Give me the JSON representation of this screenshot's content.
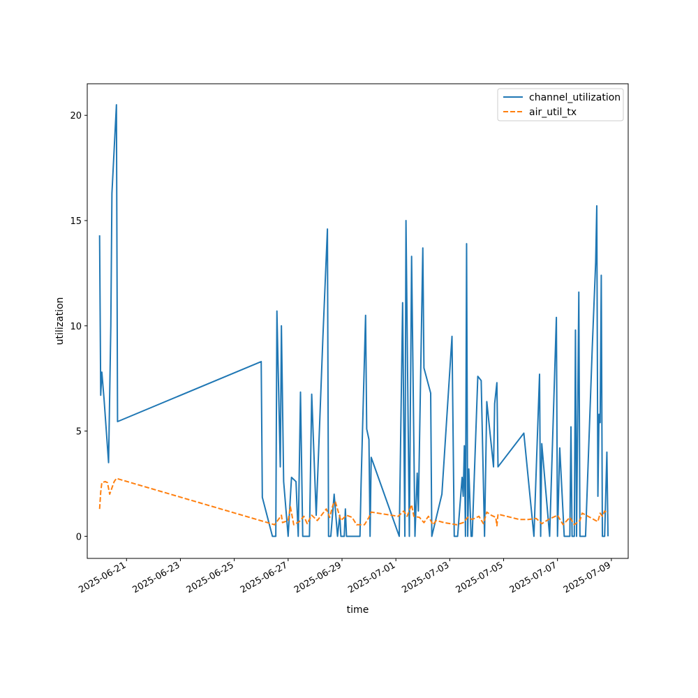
{
  "chart_data": {
    "type": "line",
    "title": "",
    "xlabel": "time",
    "ylabel": "utilization",
    "x_ticks": [
      "2025-06-21",
      "2025-06-23",
      "2025-06-25",
      "2025-06-27",
      "2025-06-29",
      "2025-07-01",
      "2025-07-03",
      "2025-07-05",
      "2025-07-07",
      "2025-07-09"
    ],
    "y_ticks": [
      0,
      5,
      10,
      15,
      20
    ],
    "ylim": [
      -1.05,
      21.5
    ],
    "xlim": [
      "2025-06-19T13:00",
      "2025-07-09T15:00"
    ],
    "grid": false,
    "legend": "top-right",
    "series": [
      {
        "name": "channel_utilization",
        "color": "#1f77b4",
        "style": "solid",
        "points": [
          [
            "2025-06-20T00:00",
            14.3
          ],
          [
            "2025-06-20T01:00",
            6.7
          ],
          [
            "2025-06-20T02:00",
            7.8
          ],
          [
            "2025-06-20T04:00",
            6.5
          ],
          [
            "2025-06-20T06:00",
            5.0
          ],
          [
            "2025-06-20T08:00",
            3.5
          ],
          [
            "2025-06-20T10:00",
            10.0
          ],
          [
            "2025-06-20T11:00",
            16.3
          ],
          [
            "2025-06-20T15:00",
            20.5
          ],
          [
            "2025-06-20T16:00",
            5.45
          ],
          [
            "2025-06-26T00:00",
            8.3
          ],
          [
            "2025-06-26T01:00",
            1.85
          ],
          [
            "2025-06-26T10:00",
            0.0
          ],
          [
            "2025-06-26T13:00",
            0.0
          ],
          [
            "2025-06-26T14:00",
            10.7
          ],
          [
            "2025-06-26T17:00",
            3.3
          ],
          [
            "2025-06-26T18:00",
            10.0
          ],
          [
            "2025-06-26T20:00",
            2.6
          ],
          [
            "2025-06-27T00:00",
            0.0
          ],
          [
            "2025-06-27T03:00",
            2.8
          ],
          [
            "2025-06-27T07:00",
            2.6
          ],
          [
            "2025-06-27T09:00",
            0.0
          ],
          [
            "2025-06-27T11:00",
            6.85
          ],
          [
            "2025-06-27T13:00",
            0.0
          ],
          [
            "2025-06-27T17:00",
            0.0
          ],
          [
            "2025-06-27T19:00",
            0.0
          ],
          [
            "2025-06-27T21:00",
            6.75
          ],
          [
            "2025-06-28T01:00",
            1.0
          ],
          [
            "2025-06-28T07:00",
            9.5
          ],
          [
            "2025-06-28T11:00",
            14.6
          ],
          [
            "2025-06-28T12:00",
            0.0
          ],
          [
            "2025-06-28T14:00",
            0.0
          ],
          [
            "2025-06-28T17:00",
            2.0
          ],
          [
            "2025-06-28T20:00",
            0.0
          ],
          [
            "2025-06-28T22:00",
            1.0
          ],
          [
            "2025-06-28T23:00",
            0.0
          ],
          [
            "2025-06-29T02:00",
            0.0
          ],
          [
            "2025-06-29T03:00",
            1.3
          ],
          [
            "2025-06-29T04:00",
            0.0
          ],
          [
            "2025-06-29T16:00",
            0.0
          ],
          [
            "2025-06-29T17:00",
            2.5
          ],
          [
            "2025-06-29T21:00",
            10.5
          ],
          [
            "2025-06-29T22:00",
            5.1
          ],
          [
            "2025-06-30T00:00",
            4.6
          ],
          [
            "2025-06-30T01:00",
            0.0
          ],
          [
            "2025-06-30T02:00",
            3.75
          ],
          [
            "2025-07-01T03:00",
            0.0
          ],
          [
            "2025-07-01T06:00",
            11.1
          ],
          [
            "2025-07-01T08:00",
            0.0
          ],
          [
            "2025-07-01T09:00",
            15.0
          ],
          [
            "2025-07-01T12:00",
            0.0
          ],
          [
            "2025-07-01T14:00",
            13.3
          ],
          [
            "2025-07-01T17:00",
            0.0
          ],
          [
            "2025-07-01T19:00",
            3.0
          ],
          [
            "2025-07-01T20:00",
            1.2
          ],
          [
            "2025-07-02T00:00",
            13.7
          ],
          [
            "2025-07-02T01:00",
            8.0
          ],
          [
            "2025-07-02T07:00",
            6.8
          ],
          [
            "2025-07-02T08:00",
            0.0
          ],
          [
            "2025-07-02T17:00",
            2.0
          ],
          [
            "2025-07-03T02:00",
            9.5
          ],
          [
            "2025-07-03T04:00",
            0.0
          ],
          [
            "2025-07-03T07:00",
            0.0
          ],
          [
            "2025-07-03T11:00",
            2.8
          ],
          [
            "2025-07-03T12:00",
            1.9
          ],
          [
            "2025-07-03T13:00",
            4.3
          ],
          [
            "2025-07-03T14:00",
            0.0
          ],
          [
            "2025-07-03T15:00",
            13.9
          ],
          [
            "2025-07-03T16:00",
            0.0
          ],
          [
            "2025-07-03T17:00",
            3.2
          ],
          [
            "2025-07-03T19:00",
            0.0
          ],
          [
            "2025-07-03T20:00",
            0.0
          ],
          [
            "2025-07-04T01:00",
            7.6
          ],
          [
            "2025-07-04T04:00",
            7.4
          ],
          [
            "2025-07-04T07:00",
            0.0
          ],
          [
            "2025-07-04T09:00",
            6.4
          ],
          [
            "2025-07-04T15:00",
            3.3
          ],
          [
            "2025-07-04T16:00",
            6.3
          ],
          [
            "2025-07-04T18:00",
            7.3
          ],
          [
            "2025-07-04T19:00",
            3.3
          ],
          [
            "2025-07-05T18:00",
            4.9
          ],
          [
            "2025-07-06T03:00",
            0.0
          ],
          [
            "2025-07-06T08:00",
            7.7
          ],
          [
            "2025-07-06T09:00",
            0.0
          ],
          [
            "2025-07-06T10:00",
            4.4
          ],
          [
            "2025-07-06T17:00",
            0.0
          ],
          [
            "2025-07-06T23:00",
            10.4
          ],
          [
            "2025-07-07T00:00",
            0.0
          ],
          [
            "2025-07-07T02:00",
            4.2
          ],
          [
            "2025-07-07T06:00",
            0.0
          ],
          [
            "2025-07-07T11:00",
            0.0
          ],
          [
            "2025-07-07T12:00",
            5.2
          ],
          [
            "2025-07-07T13:00",
            0.0
          ],
          [
            "2025-07-07T15:00",
            0.0
          ],
          [
            "2025-07-07T16:00",
            9.8
          ],
          [
            "2025-07-07T17:00",
            0.0
          ],
          [
            "2025-07-07T19:00",
            11.6
          ],
          [
            "2025-07-07T20:00",
            0.0
          ],
          [
            "2025-07-07T23:00",
            0.0
          ],
          [
            "2025-07-08T01:00",
            0.0
          ],
          [
            "2025-07-08T07:00",
            9.0
          ],
          [
            "2025-07-08T10:00",
            13.0
          ],
          [
            "2025-07-08T11:00",
            15.7
          ],
          [
            "2025-07-08T12:00",
            1.9
          ],
          [
            "2025-07-08T13:00",
            5.8
          ],
          [
            "2025-07-08T14:00",
            5.4
          ],
          [
            "2025-07-08T15:00",
            12.4
          ],
          [
            "2025-07-08T16:00",
            0.0
          ],
          [
            "2025-07-08T18:00",
            0.0
          ],
          [
            "2025-07-08T20:00",
            4.0
          ],
          [
            "2025-07-08T21:00",
            0.0
          ]
        ]
      },
      {
        "name": "air_util_tx",
        "color": "#ff7f0e",
        "style": "dashed",
        "points": [
          [
            "2025-06-20T00:00",
            1.3
          ],
          [
            "2025-06-20T01:00",
            2.1
          ],
          [
            "2025-06-20T02:00",
            2.55
          ],
          [
            "2025-06-20T05:00",
            2.6
          ],
          [
            "2025-06-20T07:00",
            2.55
          ],
          [
            "2025-06-20T09:00",
            2.0
          ],
          [
            "2025-06-20T11:00",
            2.3
          ],
          [
            "2025-06-20T13:00",
            2.6
          ],
          [
            "2025-06-20T15:00",
            2.75
          ],
          [
            "2025-06-26T12:00",
            0.55
          ],
          [
            "2025-06-26T18:00",
            1.0
          ],
          [
            "2025-06-26T19:00",
            0.65
          ],
          [
            "2025-06-27T00:00",
            0.75
          ],
          [
            "2025-06-27T02:00",
            1.4
          ],
          [
            "2025-06-27T05:00",
            0.55
          ],
          [
            "2025-06-27T10:00",
            0.7
          ],
          [
            "2025-06-27T14:00",
            0.95
          ],
          [
            "2025-06-27T17:00",
            0.6
          ],
          [
            "2025-06-27T21:00",
            1.0
          ],
          [
            "2025-06-28T02:00",
            0.75
          ],
          [
            "2025-06-28T10:00",
            1.3
          ],
          [
            "2025-06-28T13:00",
            0.9
          ],
          [
            "2025-06-28T16:00",
            1.5
          ],
          [
            "2025-06-28T18:00",
            1.65
          ],
          [
            "2025-06-28T23:00",
            0.75
          ],
          [
            "2025-06-29T04:00",
            1.0
          ],
          [
            "2025-06-29T09:00",
            0.9
          ],
          [
            "2025-06-29T13:00",
            0.55
          ],
          [
            "2025-06-29T20:00",
            0.55
          ],
          [
            "2025-06-30T00:00",
            0.9
          ],
          [
            "2025-06-30T02:00",
            1.15
          ],
          [
            "2025-07-01T02:00",
            0.95
          ],
          [
            "2025-07-01T07:00",
            1.2
          ],
          [
            "2025-07-01T10:00",
            0.95
          ],
          [
            "2025-07-01T14:00",
            1.5
          ],
          [
            "2025-07-01T16:00",
            0.95
          ],
          [
            "2025-07-01T21:00",
            0.9
          ],
          [
            "2025-07-02T01:00",
            0.65
          ],
          [
            "2025-07-02T05:00",
            0.95
          ],
          [
            "2025-07-02T09:00",
            0.55
          ],
          [
            "2025-07-02T12:00",
            0.75
          ],
          [
            "2025-07-02T19:00",
            0.65
          ],
          [
            "2025-07-03T06:00",
            0.55
          ],
          [
            "2025-07-03T12:00",
            0.65
          ],
          [
            "2025-07-03T16:00",
            0.9
          ],
          [
            "2025-07-03T20:00",
            0.8
          ],
          [
            "2025-07-04T02:00",
            0.95
          ],
          [
            "2025-07-04T06:00",
            0.6
          ],
          [
            "2025-07-04T09:00",
            1.15
          ],
          [
            "2025-07-04T13:00",
            1.0
          ],
          [
            "2025-07-04T17:00",
            0.9
          ],
          [
            "2025-07-04T18:00",
            0.5
          ],
          [
            "2025-07-04T19:00",
            1.05
          ],
          [
            "2025-07-05T14:00",
            0.8
          ],
          [
            "2025-07-05T22:00",
            0.8
          ],
          [
            "2025-07-06T05:00",
            0.85
          ],
          [
            "2025-07-06T10:00",
            0.6
          ],
          [
            "2025-07-06T16:00",
            0.8
          ],
          [
            "2025-07-07T00:00",
            1.0
          ],
          [
            "2025-07-07T05:00",
            0.55
          ],
          [
            "2025-07-07T11:00",
            0.9
          ],
          [
            "2025-07-07T15:00",
            0.55
          ],
          [
            "2025-07-07T20:00",
            0.75
          ],
          [
            "2025-07-07T22:00",
            1.1
          ],
          [
            "2025-07-08T05:00",
            0.9
          ],
          [
            "2025-07-08T10:00",
            0.75
          ],
          [
            "2025-07-08T12:00",
            0.7
          ],
          [
            "2025-07-08T14:00",
            1.1
          ],
          [
            "2025-07-08T16:00",
            0.95
          ],
          [
            "2025-07-08T18:00",
            1.2
          ],
          [
            "2025-07-08T21:00",
            1.1
          ]
        ]
      }
    ]
  }
}
